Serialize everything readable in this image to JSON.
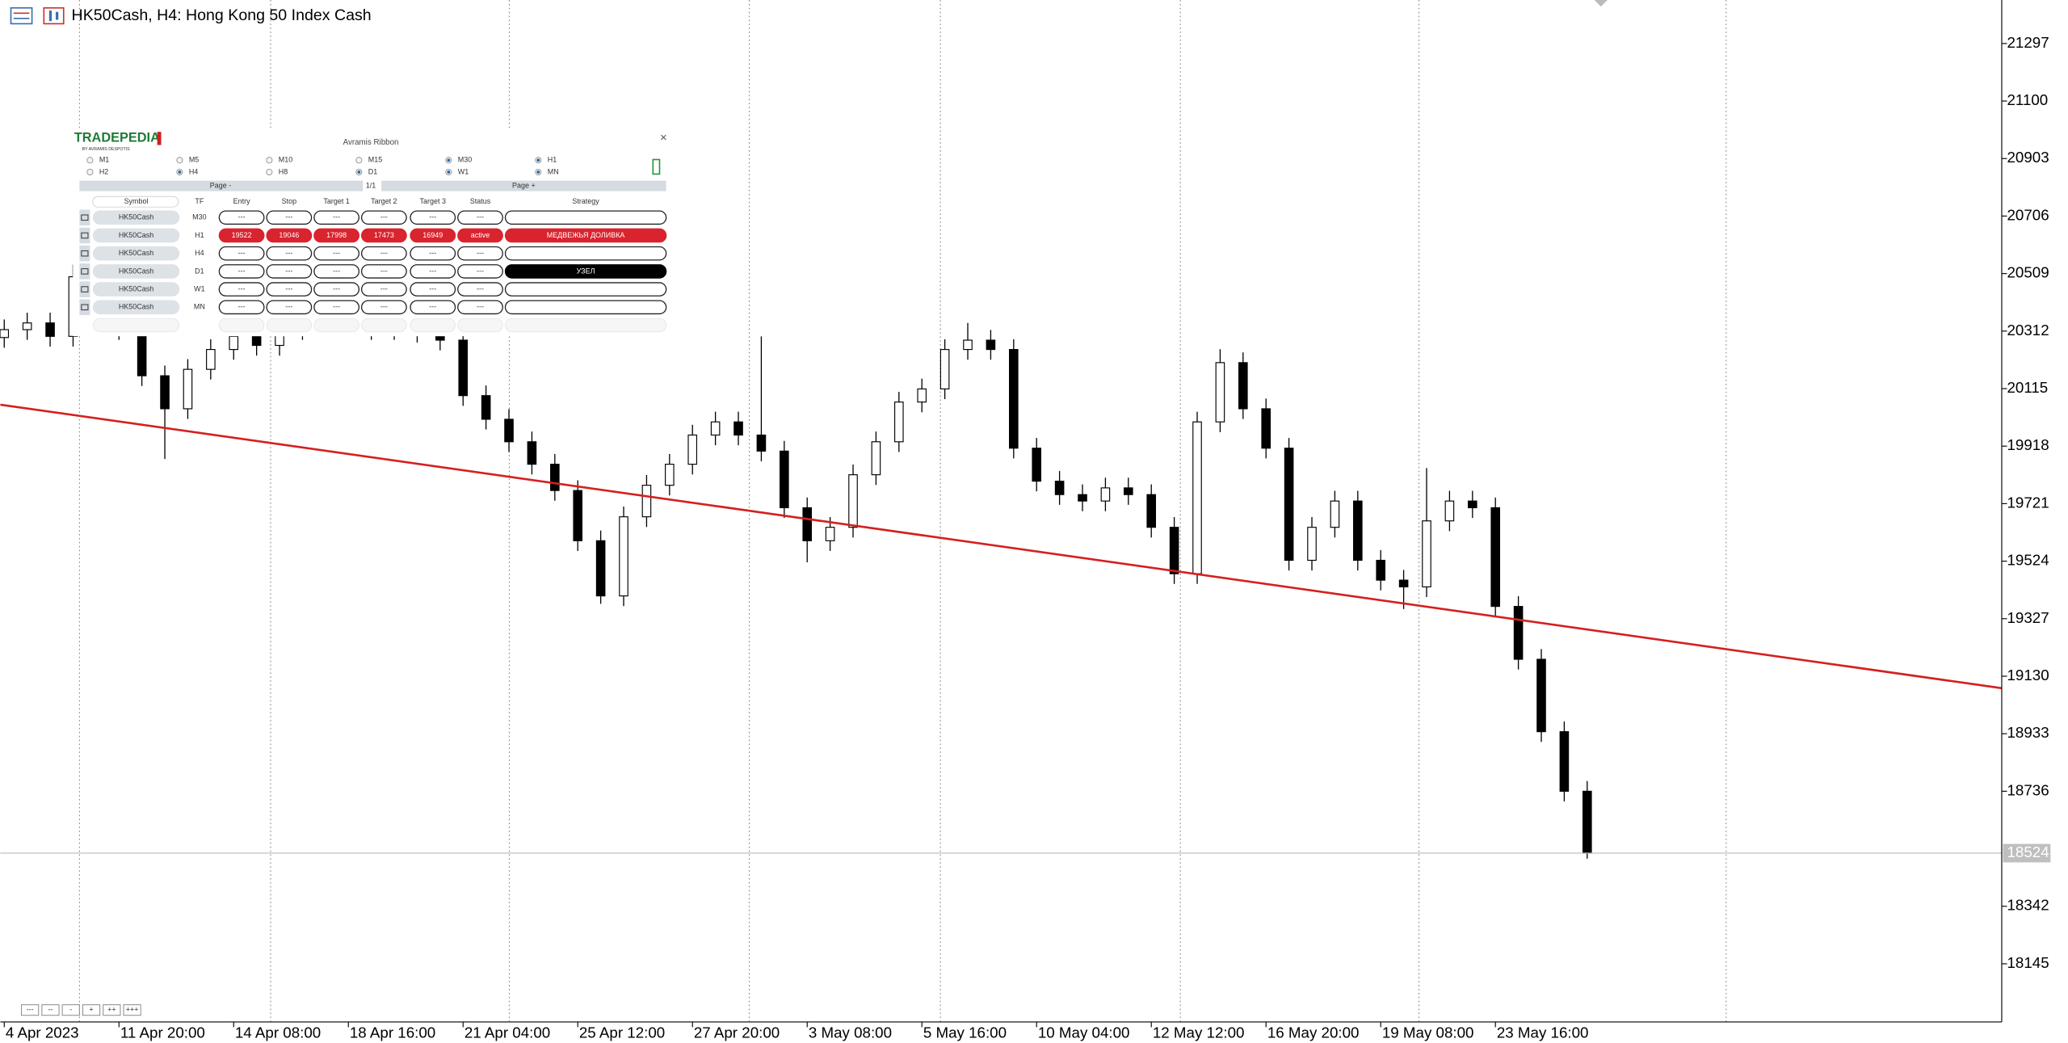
{
  "header": {
    "title": "HK50Cash, H4:  Hong Kong 50 Index Cash"
  },
  "chart_data": {
    "type": "candlestick",
    "xlim": [
      -0.17,
      87.07
    ],
    "ylim": [
      17946,
      21446
    ],
    "xticks": [
      {
        "value": 0,
        "label": "4 Apr 2023"
      },
      {
        "value": 5,
        "label": "11 Apr 20:00"
      },
      {
        "value": 10,
        "label": "14 Apr 08:00"
      },
      {
        "value": 15,
        "label": "18 Apr 16:00"
      },
      {
        "value": 20,
        "label": "21 Apr 04:00"
      },
      {
        "value": 25,
        "label": "25 Apr 12:00"
      },
      {
        "value": 30,
        "label": "27 Apr 20:00"
      },
      {
        "value": 35,
        "label": "3 May 08:00"
      },
      {
        "value": 40,
        "label": "5 May 16:00"
      },
      {
        "value": 45,
        "label": "10 May 04:00"
      },
      {
        "value": 50,
        "label": "12 May 12:00"
      },
      {
        "value": 55,
        "label": "16 May 20:00"
      },
      {
        "value": 60,
        "label": "19 May 08:00"
      },
      {
        "value": 65,
        "label": "23 May 16:00"
      }
    ],
    "yticks": [
      21297,
      21100,
      20903,
      20706,
      20509,
      20312,
      20115,
      19918,
      19721,
      19524,
      19327,
      19130,
      18933,
      18736,
      18342,
      18145
    ],
    "open": [
      20290,
      20317,
      20340,
      20294,
      20498,
      20407,
      20317,
      20159,
      20046,
      20181,
      20249,
      20294,
      20263,
      20317,
      20362,
      20340,
      20371,
      20317,
      20340,
      20308,
      20281,
      20091,
      20010,
      19933,
      19856,
      19766,
      19594,
      19405,
      19676,
      19784,
      19856,
      19956,
      20001,
      19956,
      19901,
      19707,
      19594,
      19640,
      19820,
      19933,
      20069,
      20114,
      20249,
      20281,
      20249,
      19911,
      19798,
      19752,
      19730,
      19775,
      19752,
      19640,
      19481,
      20001,
      20204,
      20046,
      19911,
      19527,
      19640,
      19730,
      19527,
      19459,
      19436,
      19662,
      19730,
      19707,
      19369,
      19188,
      18940,
      18736
    ],
    "high": [
      20352,
      20375,
      20375,
      20540,
      20533,
      20442,
      20352,
      20194,
      20216,
      20284,
      20329,
      20329,
      20352,
      20397,
      20397,
      20406,
      20406,
      20375,
      20375,
      20343,
      20316,
      20126,
      20045,
      19968,
      19891,
      19801,
      19629,
      19711,
      19819,
      19891,
      19991,
      20036,
      20036,
      20294,
      19936,
      19742,
      19675,
      19855,
      19968,
      20104,
      20149,
      20284,
      20340,
      20316,
      20284,
      19946,
      19833,
      19787,
      19810,
      19810,
      19787,
      19675,
      20036,
      20250,
      20239,
      20081,
      19946,
      19675,
      19765,
      19765,
      19562,
      19494,
      19843,
      19765,
      19765,
      19742,
      19404,
      19223,
      18975,
      18771
    ],
    "low": [
      20255,
      20282,
      20259,
      20259,
      20372,
      20282,
      20124,
      19874,
      20011,
      20146,
      20214,
      20228,
      20228,
      20282,
      20305,
      20305,
      20282,
      20282,
      20273,
      20246,
      20056,
      19975,
      19898,
      19821,
      19731,
      19559,
      19378,
      19370,
      19641,
      19749,
      19821,
      19921,
      19921,
      19866,
      19672,
      19520,
      19559,
      19605,
      19785,
      19898,
      20034,
      20079,
      20214,
      20214,
      19876,
      19763,
      19717,
      19695,
      19695,
      19717,
      19605,
      19446,
      19446,
      19966,
      20011,
      19876,
      19492,
      19492,
      19605,
      19492,
      19424,
      19360,
      19401,
      19627,
      19672,
      19334,
      19153,
      18905,
      18701,
      18505
    ],
    "close": [
      20317,
      20340,
      20294,
      20498,
      20407,
      20317,
      20159,
      20046,
      20181,
      20249,
      20294,
      20263,
      20317,
      20362,
      20340,
      20371,
      20317,
      20340,
      20308,
      20281,
      20091,
      20010,
      19933,
      19856,
      19766,
      19594,
      19405,
      19676,
      19784,
      19856,
      19956,
      20001,
      19956,
      19901,
      19707,
      19594,
      19640,
      19820,
      19933,
      20069,
      20114,
      20249,
      20281,
      20249,
      19911,
      19798,
      19752,
      19730,
      19775,
      19752,
      19640,
      19481,
      20001,
      20204,
      20046,
      19911,
      19527,
      19640,
      19730,
      19527,
      19459,
      19436,
      19662,
      19730,
      19707,
      19369,
      19188,
      18940,
      18736,
      18524
    ],
    "trendline": {
      "x": [
        -0.17,
        87.07
      ],
      "y": [
        20060,
        19089
      ],
      "color": "#d42020"
    },
    "last_price": 18524,
    "bull_color": "#ffffff",
    "bear_color": "#000000"
  },
  "panel": {
    "logo": "TRADEPEDIA",
    "logo_sub": "BY AVRAMIS DESPOTIS",
    "title": "Avramis Ribbon",
    "close": "×",
    "timeframes": [
      {
        "label": "M1",
        "checked": false
      },
      {
        "label": "M5",
        "checked": false
      },
      {
        "label": "M10",
        "checked": false
      },
      {
        "label": "M15",
        "checked": false
      },
      {
        "label": "M30",
        "checked": true
      },
      {
        "label": "H1",
        "checked": true
      },
      {
        "label": "H2",
        "checked": false
      },
      {
        "label": "H4",
        "checked": true
      },
      {
        "label": "H8",
        "checked": false
      },
      {
        "label": "D1",
        "checked": true
      },
      {
        "label": "W1",
        "checked": true
      },
      {
        "label": "MN",
        "checked": true
      }
    ],
    "page_prev": "Page -",
    "page_num": "1/1",
    "page_next": "Page +",
    "columns": [
      "Symbol",
      "TF",
      "Entry",
      "Stop",
      "Target 1",
      "Target 2",
      "Target 3",
      "Status",
      "Strategy"
    ],
    "rows": [
      {
        "cells": [
          "HK50Cash",
          "M30",
          "---",
          "---",
          "---",
          "---",
          "---",
          "---"
        ]
      },
      {
        "cells": [
          "HK50Cash",
          "H1",
          "19522",
          "19046",
          "17998",
          "17473",
          "16949",
          "active",
          "МЕДВЕЖЬЯ ДОЛИВКА"
        ],
        "fill": "#d9232e",
        "strategy_fill": "#d9232e"
      },
      {
        "cells": [
          "HK50Cash",
          "H4",
          "---",
          "---",
          "---",
          "---",
          "---",
          "---"
        ]
      },
      {
        "cells": [
          "HK50Cash",
          "D1",
          "---",
          "---",
          "---",
          "---",
          "---",
          "---",
          "УЗЕЛ"
        ],
        "strategy_fill": "#000000"
      },
      {
        "cells": [
          "HK50Cash",
          "W1",
          "---",
          "---",
          "---",
          "---",
          "---",
          "---"
        ]
      },
      {
        "cells": [
          "HK50Cash",
          "MN",
          "---",
          "---",
          "---",
          "---",
          "---",
          "---"
        ]
      }
    ]
  },
  "buttons": [
    "---",
    "--",
    "-",
    "+",
    "++",
    "+++"
  ]
}
